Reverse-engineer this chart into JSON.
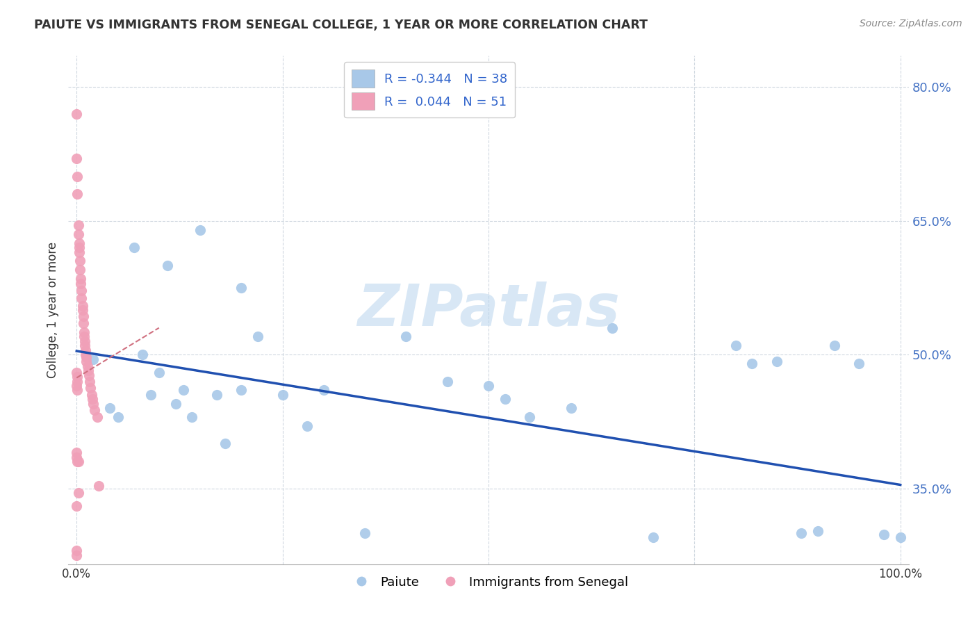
{
  "title": "PAIUTE VS IMMIGRANTS FROM SENEGAL COLLEGE, 1 YEAR OR MORE CORRELATION CHART",
  "source": "Source: ZipAtlas.com",
  "xlabel": "",
  "ylabel": "College, 1 year or more",
  "xlim": [
    -0.01,
    1.01
  ],
  "ylim": [
    0.265,
    0.835
  ],
  "yticks": [
    0.35,
    0.5,
    0.65,
    0.8
  ],
  "ytick_labels": [
    "35.0%",
    "50.0%",
    "65.0%",
    "80.0%"
  ],
  "xticks": [
    0.0,
    0.25,
    0.5,
    0.75,
    1.0
  ],
  "xtick_labels": [
    "0.0%",
    "",
    "",
    "",
    "100.0%"
  ],
  "legend_r1": "R = -0.344   N = 38",
  "legend_r2": "R =  0.044   N = 51",
  "color_blue": "#a8c8e8",
  "color_pink": "#f0a0b8",
  "trend_blue": "#2050b0",
  "trend_pink": "#d07080",
  "watermark": "ZIPatlas",
  "blue_x": [
    0.02,
    0.04,
    0.05,
    0.07,
    0.08,
    0.09,
    0.1,
    0.11,
    0.12,
    0.13,
    0.14,
    0.15,
    0.17,
    0.18,
    0.2,
    0.2,
    0.22,
    0.25,
    0.28,
    0.3,
    0.35,
    0.4,
    0.45,
    0.5,
    0.52,
    0.55,
    0.6,
    0.65,
    0.7,
    0.8,
    0.82,
    0.85,
    0.88,
    0.9,
    0.92,
    0.95,
    0.98,
    1.0
  ],
  "blue_y": [
    0.495,
    0.44,
    0.43,
    0.62,
    0.5,
    0.455,
    0.48,
    0.6,
    0.445,
    0.46,
    0.43,
    0.64,
    0.455,
    0.4,
    0.46,
    0.575,
    0.52,
    0.455,
    0.42,
    0.46,
    0.3,
    0.52,
    0.47,
    0.465,
    0.45,
    0.43,
    0.44,
    0.53,
    0.295,
    0.51,
    0.49,
    0.492,
    0.3,
    0.302,
    0.51,
    0.49,
    0.298,
    0.295
  ],
  "pink_x": [
    0.0,
    0.0,
    0.001,
    0.001,
    0.002,
    0.002,
    0.003,
    0.003,
    0.003,
    0.004,
    0.004,
    0.005,
    0.005,
    0.006,
    0.006,
    0.007,
    0.007,
    0.008,
    0.008,
    0.009,
    0.009,
    0.01,
    0.01,
    0.011,
    0.011,
    0.012,
    0.012,
    0.013,
    0.014,
    0.015,
    0.016,
    0.017,
    0.018,
    0.019,
    0.02,
    0.022,
    0.025,
    0.027,
    0.0,
    0.001,
    0.001,
    0.002,
    0.0,
    0.0,
    0.001,
    0.0,
    0.0,
    0.0,
    0.001,
    0.002,
    0.0
  ],
  "pink_y": [
    0.77,
    0.72,
    0.7,
    0.68,
    0.645,
    0.635,
    0.625,
    0.62,
    0.615,
    0.605,
    0.595,
    0.585,
    0.58,
    0.572,
    0.563,
    0.555,
    0.55,
    0.543,
    0.535,
    0.525,
    0.52,
    0.515,
    0.51,
    0.505,
    0.5,
    0.497,
    0.492,
    0.487,
    0.482,
    0.477,
    0.47,
    0.463,
    0.455,
    0.45,
    0.445,
    0.438,
    0.43,
    0.353,
    0.48,
    0.475,
    0.47,
    0.345,
    0.39,
    0.385,
    0.38,
    0.33,
    0.275,
    0.465,
    0.46,
    0.38,
    0.28
  ],
  "blue_trend_x": [
    0.0,
    1.0
  ],
  "blue_trend_y": [
    0.504,
    0.354
  ],
  "pink_trend_x": [
    0.0,
    0.1
  ],
  "pink_trend_y": [
    0.474,
    0.53
  ],
  "background_color": "#ffffff",
  "grid_color": "#d0d8e0"
}
